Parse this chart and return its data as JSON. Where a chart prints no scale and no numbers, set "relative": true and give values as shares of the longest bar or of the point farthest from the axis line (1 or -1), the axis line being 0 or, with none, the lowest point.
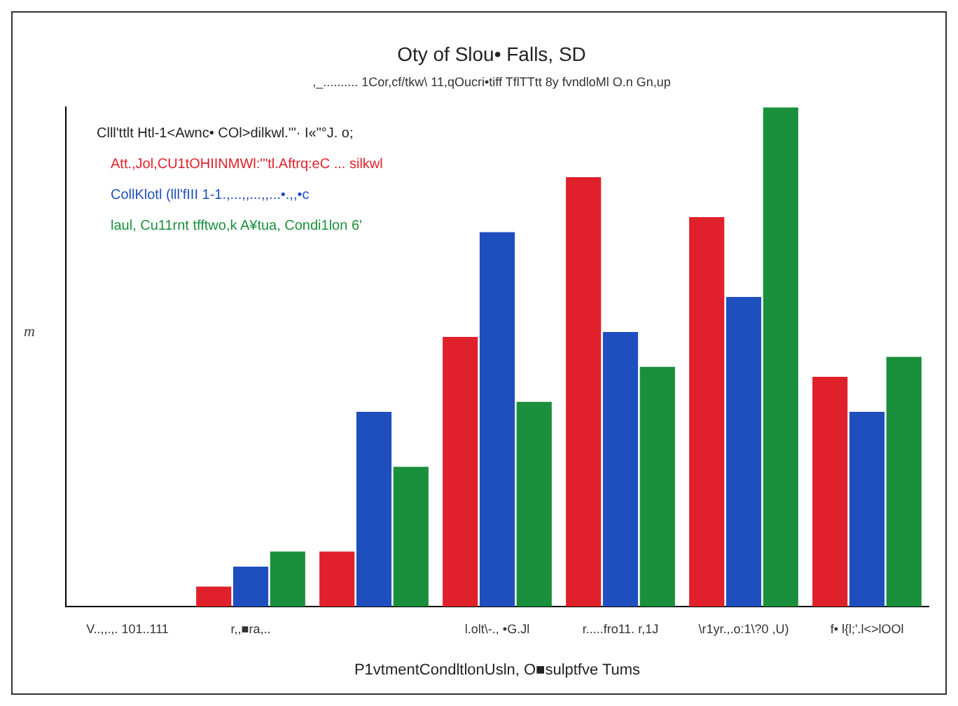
{
  "chart_data": {
    "type": "bar",
    "title": "Oty of Slou• Falls, SD",
    "subtitle": ",_.......... 1Cor,cf/tkw\\ 11,qOucri•tiff TflTTtt 8y fvndloMl O.n Gn,up",
    "xlabel": "P1vtmentCondltlonUsln, O■sulptfve Tums",
    "legend_title": "Clll'ttlt Htl-1<Awnc• COl>dilkwl.'\"· I«\"°J. o;",
    "relative": true,
    "legend": "top left",
    "categories": [
      "V..,,.,. 101..111",
      "r,,■ra,..",
      null,
      "l.olt\\-., •G.Jl",
      "r.....fro11. r,1J",
      "\\r1yr.,.o:1\\?0 ,U)",
      "f• l{l;'.l<>lOOl"
    ],
    "series": [
      {
        "name": "Att.,Jol,CU1tOHIINMWl:'\"tl.Aftrq:eC ... silkwl",
        "color": "#e0202a",
        "values": [
          null,
          0.04,
          0.11,
          0.54,
          0.86,
          0.78,
          0.46
        ]
      },
      {
        "name": "CollKlotl (lll'fIII 1-1.,...,,...,,...•.,,•c",
        "color": "#1f4fbf",
        "values": [
          null,
          0.08,
          0.39,
          0.75,
          0.55,
          0.62,
          0.39
        ]
      },
      {
        "name": "laul, Cu11rnt tfftwo,k A¥tua, Condi1lon 6'",
        "color": "#1a8f3c",
        "values": [
          null,
          0.11,
          0.28,
          0.41,
          0.48,
          1,
          0.5
        ]
      }
    ],
    "annotations": [
      "m"
    ]
  }
}
